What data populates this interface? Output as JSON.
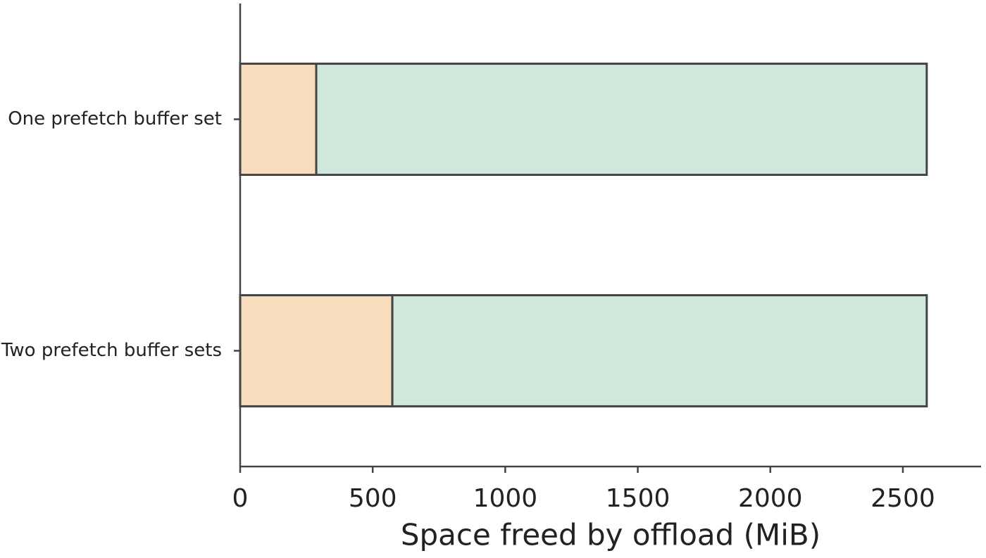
{
  "chart_data": {
    "type": "bar",
    "orientation": "horizontal",
    "stacked": true,
    "xlabel": "Space freed by offload (MiB)",
    "categories": [
      "One prefetch buffer set",
      "Two prefetch buffer sets"
    ],
    "series": [
      {
        "color": "#f7dcbe",
        "values": [
          287,
          574
        ]
      },
      {
        "color": "#d0e8dc",
        "values": [
          2303,
          2016
        ]
      }
    ],
    "xlim": [
      0,
      2795
    ],
    "xticks": [
      0,
      500,
      1000,
      1500,
      2000,
      2500
    ],
    "edgecolor": "#444444"
  }
}
